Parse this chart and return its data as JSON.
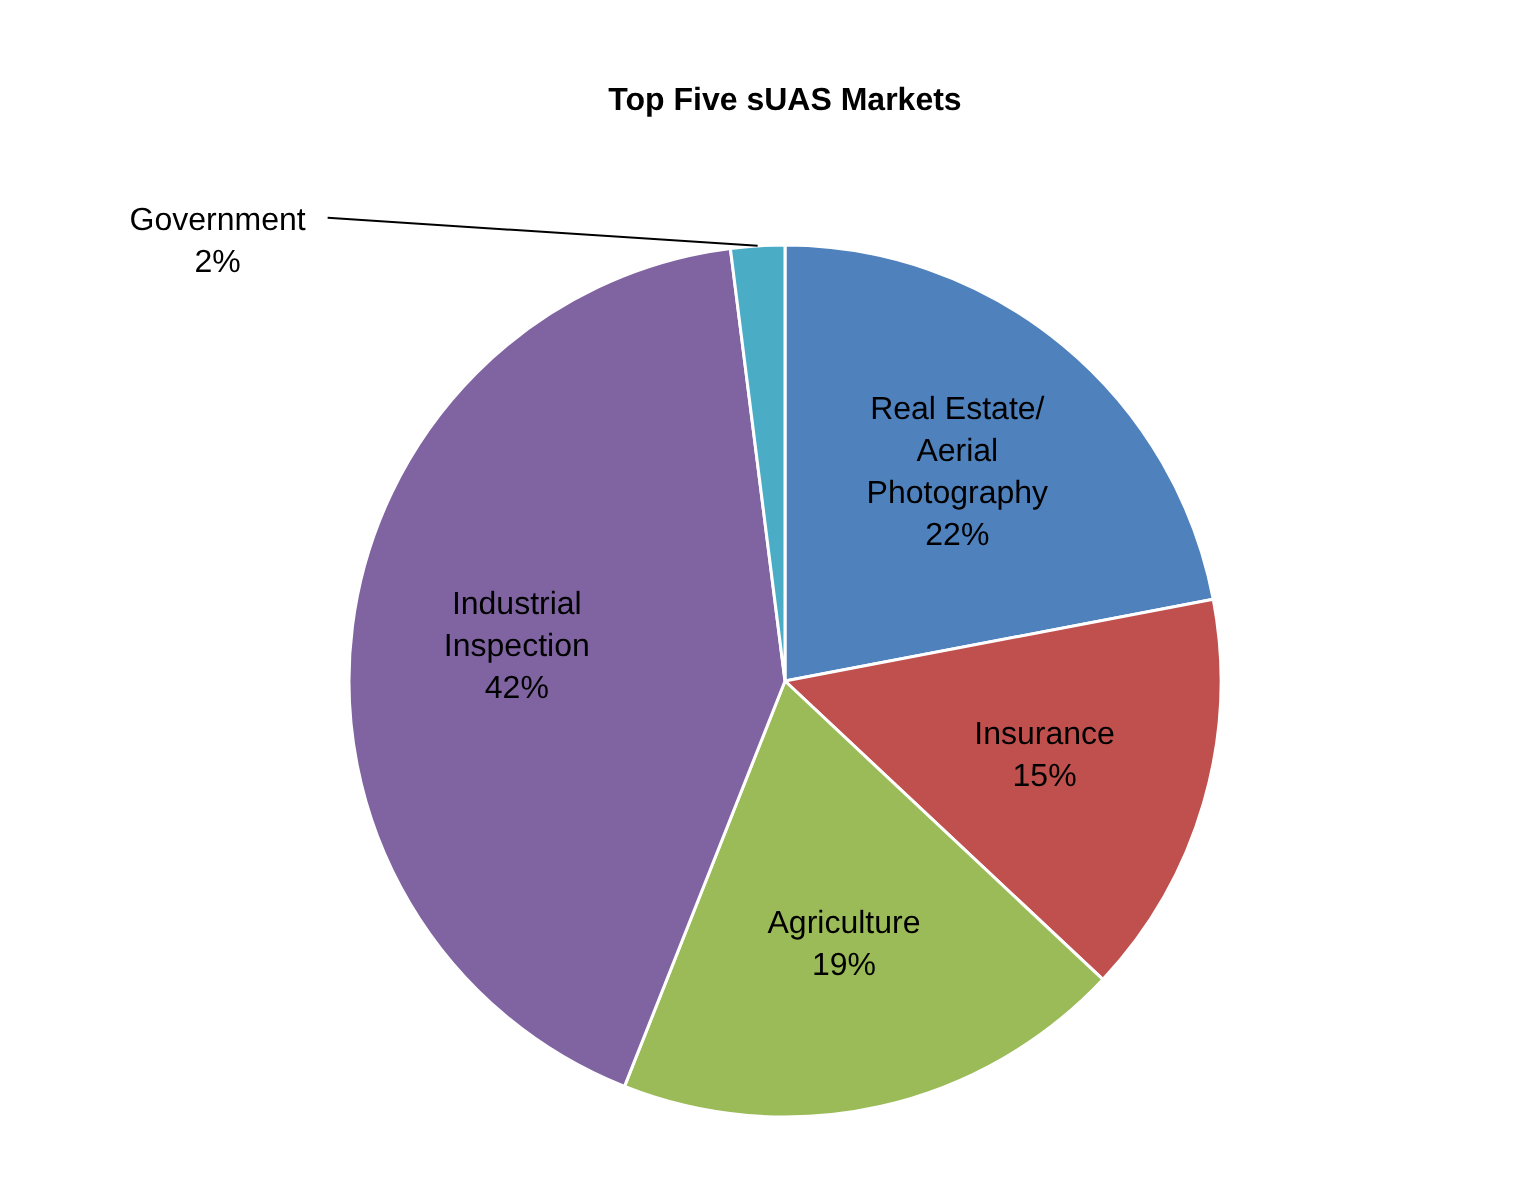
{
  "chart_data": {
    "type": "pie",
    "title": "Top Five sUAS Markets",
    "categories": [
      "Real Estate/ Aerial Photography",
      "Insurance",
      "Agriculture",
      "Industrial Inspection",
      "Government"
    ],
    "values": [
      22,
      15,
      19,
      42,
      2
    ],
    "value_labels": [
      "22%",
      "15%",
      "19%",
      "42%",
      "2%"
    ],
    "colors": [
      "#4f81bd",
      "#c0504d",
      "#9bbb59",
      "#8064a2",
      "#4bacc6"
    ]
  }
}
